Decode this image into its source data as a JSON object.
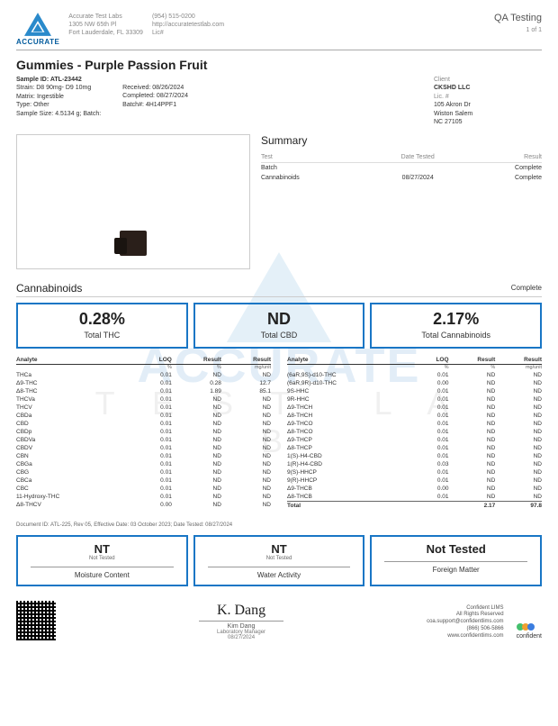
{
  "header": {
    "lab_name": "ACCURATE",
    "lab_info_lines": [
      "Accurate Test Labs",
      "1305 NW 65th Pl",
      "Fort Lauderdale, FL 33309"
    ],
    "lab_contact_lines": [
      "(954) 515-0200",
      "http://accuratetestlab.com",
      "Lic#"
    ],
    "qa_label": "QA Testing",
    "page_label": "1 of 1"
  },
  "product": {
    "title": "Gummies - Purple Passion Fruit",
    "meta_left": [
      [
        "Sample ID:",
        "ATL-23442",
        true
      ],
      [
        "Strain:",
        "D8 90mg- D9 10mg",
        false
      ],
      [
        "Matrix:",
        "Ingestible",
        false
      ],
      [
        "Type:",
        "Other",
        false
      ],
      [
        "Sample Size:",
        "4.5134 g; Batch:",
        false
      ]
    ],
    "meta_mid": [
      [
        "Received:",
        "08/26/2024"
      ],
      [
        "Completed:",
        "08/27/2024"
      ],
      [
        "Batch#:",
        "4H14PPF1"
      ]
    ],
    "client": {
      "label": "Client",
      "name": "CKSHD LLC",
      "lic_label": "Lic. #",
      "address": [
        "105 Akron Dr",
        "Wiston Salem",
        "NC 27105"
      ]
    }
  },
  "summary": {
    "title": "Summary",
    "headers": [
      "Test",
      "Date Tested",
      "Result"
    ],
    "rows": [
      [
        "Batch",
        "",
        "Complete"
      ],
      [
        "Cannabinoids",
        "08/27/2024",
        "Complete"
      ]
    ]
  },
  "cannabinoids": {
    "title": "Cannabinoids",
    "status": "Complete",
    "big": [
      {
        "val": "0.28%",
        "lbl": "Total THC"
      },
      {
        "val": "ND",
        "lbl": "Total CBD"
      },
      {
        "val": "2.17%",
        "lbl": "Total Cannabinoids"
      }
    ],
    "col_headers": [
      "Analyte",
      "LOQ",
      "Result",
      "Result"
    ],
    "unit_headers": [
      "",
      "%",
      "%",
      "mg/unit"
    ],
    "left": [
      [
        "THCa",
        "0.01",
        "ND",
        "ND"
      ],
      [
        "Δ9-THC",
        "0.01",
        "0.28",
        "12.7"
      ],
      [
        "Δ8-THC",
        "0.01",
        "1.89",
        "85.1"
      ],
      [
        "THCVa",
        "0.01",
        "ND",
        "ND"
      ],
      [
        "THCV",
        "0.01",
        "ND",
        "ND"
      ],
      [
        "CBDa",
        "0.01",
        "ND",
        "ND"
      ],
      [
        "CBD",
        "0.01",
        "ND",
        "ND"
      ],
      [
        "CBDp",
        "0.01",
        "ND",
        "ND"
      ],
      [
        "CBDVa",
        "0.01",
        "ND",
        "ND"
      ],
      [
        "CBDV",
        "0.01",
        "ND",
        "ND"
      ],
      [
        "CBN",
        "0.01",
        "ND",
        "ND"
      ],
      [
        "CBGa",
        "0.01",
        "ND",
        "ND"
      ],
      [
        "CBG",
        "0.01",
        "ND",
        "ND"
      ],
      [
        "CBCa",
        "0.01",
        "ND",
        "ND"
      ],
      [
        "CBC",
        "0.01",
        "ND",
        "ND"
      ],
      [
        "11-Hydroxy-THC",
        "0.01",
        "ND",
        "ND"
      ],
      [
        "Δ8-THCV",
        "0.00",
        "ND",
        "ND"
      ]
    ],
    "right": [
      [
        "(6aR,9S)-d10-THC",
        "0.01",
        "ND",
        "ND"
      ],
      [
        "(6aR,9R)-d10-THC",
        "0.00",
        "ND",
        "ND"
      ],
      [
        "9S-HHC",
        "0.01",
        "ND",
        "ND"
      ],
      [
        "9R-HHC",
        "0.01",
        "ND",
        "ND"
      ],
      [
        "Δ9-THCH",
        "0.01",
        "ND",
        "ND"
      ],
      [
        "Δ8-THCH",
        "0.01",
        "ND",
        "ND"
      ],
      [
        "Δ9-THCO",
        "0.01",
        "ND",
        "ND"
      ],
      [
        "Δ8-THCO",
        "0.01",
        "ND",
        "ND"
      ],
      [
        "Δ9-THCP",
        "0.01",
        "ND",
        "ND"
      ],
      [
        "Δ8-THCP",
        "0.01",
        "ND",
        "ND"
      ],
      [
        "1(S)-H4-CBD",
        "0.01",
        "ND",
        "ND"
      ],
      [
        "1(R)-H4-CBD",
        "0.03",
        "ND",
        "ND"
      ],
      [
        "9(S)-HHCP",
        "0.01",
        "ND",
        "ND"
      ],
      [
        "9(R)-HHCP",
        "0.01",
        "ND",
        "ND"
      ],
      [
        "Δ9-THCB",
        "0.00",
        "ND",
        "ND"
      ],
      [
        "Δ8-THCB",
        "0.01",
        "ND",
        "ND"
      ]
    ],
    "total_row": [
      "Total",
      "",
      "2.17",
      "97.8"
    ]
  },
  "doc_line": "Document ID: ATL-225, Rev 05, Effective Date: 03 October 2023; Date Tested: 08/27/2024",
  "secondary": [
    {
      "val": "NT",
      "sub": "Not Tested",
      "lbl": "Moisture Content"
    },
    {
      "val": "NT",
      "sub": "Not Tested",
      "lbl": "Water Activity"
    },
    {
      "val": "Not Tested",
      "sub": "",
      "lbl": "Foreign Matter"
    }
  ],
  "footer": {
    "signature_name": "Kim Dang",
    "signature_role": "Laboratory Manager",
    "signature_date": "08/27/2024",
    "confident": {
      "name": "Confident LIMS",
      "rights": "All Rights Reserved",
      "email": "coa.support@confidentlims.com",
      "phone": "(866) 506-5866",
      "url": "www.confidentlims.com",
      "brand": "confident"
    }
  },
  "colors": {
    "accent": "#1976c5",
    "logo_fill": "#2a8acb",
    "text_muted": "#888"
  }
}
